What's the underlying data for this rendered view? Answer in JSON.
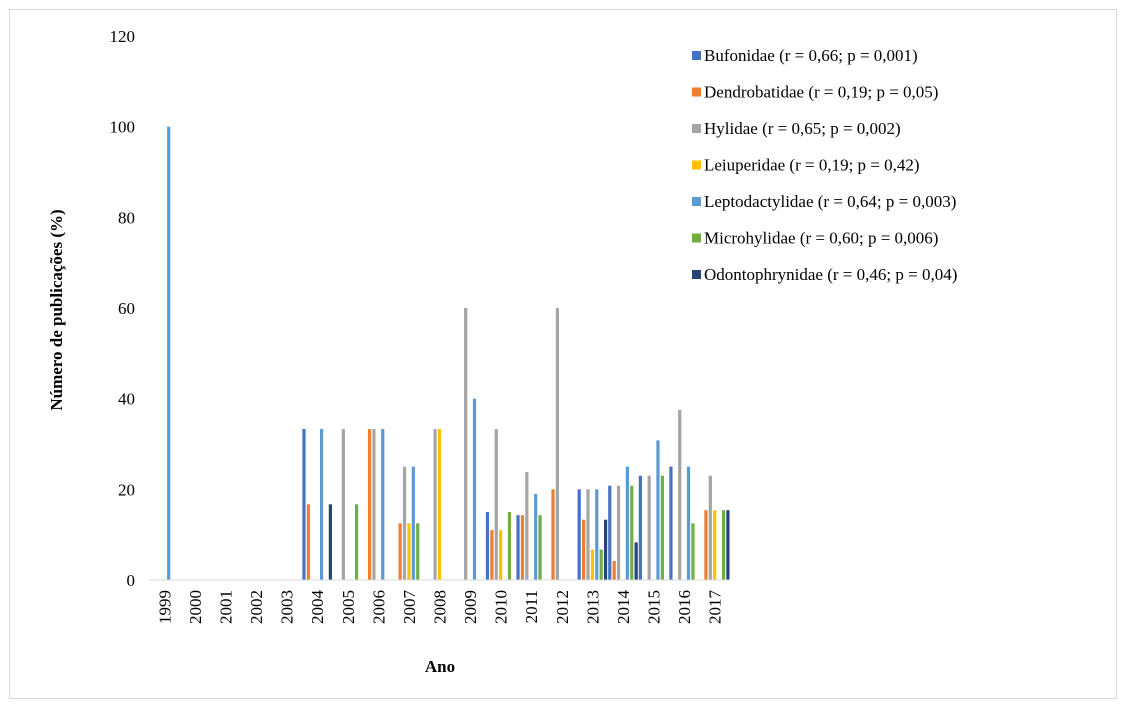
{
  "chart_data": {
    "type": "bar",
    "title": "",
    "xlabel": "Ano",
    "ylabel": "Número de publicações (%)",
    "ylim": [
      0,
      120
    ],
    "yticks": [
      0,
      20,
      40,
      60,
      80,
      100,
      120
    ],
    "grid": false,
    "legend_position": "top-right",
    "categories": [
      "1999",
      "2000",
      "2001",
      "2002",
      "2003",
      "2004",
      "2005",
      "2006",
      "2007",
      "2008",
      "2009",
      "2010",
      "2011",
      "2012",
      "2013",
      "2014",
      "2015",
      "2016",
      "2017"
    ],
    "series": [
      {
        "name": "Bufonidae (r = 0,66; p = 0,001)",
        "color": "#4472C4",
        "values": [
          0,
          0,
          0,
          0,
          0,
          33.3,
          0,
          0,
          0,
          0,
          0,
          15,
          14.3,
          0,
          20,
          20.8,
          23,
          25,
          0
        ]
      },
      {
        "name": "Dendrobatidae (r = 0,19; p = 0,05)",
        "color": "#ED7D31",
        "values": [
          0,
          0,
          0,
          0,
          0,
          16.7,
          0,
          33.3,
          12.5,
          0,
          0,
          11,
          14.3,
          20,
          13.3,
          4.2,
          0,
          0,
          15.4
        ]
      },
      {
        "name": "Hylidae (r = 0,65; p = 0,002)",
        "color": "#A5A5A5",
        "values": [
          0,
          0,
          0,
          0,
          0,
          0,
          33.3,
          33.3,
          25,
          33.3,
          60,
          33.3,
          23.8,
          60,
          20,
          20.8,
          23,
          37.5,
          23
        ]
      },
      {
        "name": "Leiuperidae (r = 0,19; p = 0,42)",
        "color": "#FFC000",
        "values": [
          0,
          0,
          0,
          0,
          0,
          0,
          0,
          0,
          12.5,
          33.3,
          0,
          11,
          0,
          0,
          6.7,
          0,
          0,
          0,
          15.4
        ]
      },
      {
        "name": "Leptodactylidae (r = 0,64; p = 0,003)",
        "color": "#5B9BD5",
        "values": [
          100,
          0,
          0,
          0,
          0,
          33.3,
          0,
          33.3,
          25,
          0,
          40,
          0,
          19,
          0,
          20,
          25,
          30.8,
          25,
          0
        ]
      },
      {
        "name": "Microhylidae (r = 0,60; p = 0,006)",
        "color": "#70AD47",
        "values": [
          0,
          0,
          0,
          0,
          0,
          0,
          16.7,
          0,
          12.5,
          0,
          0,
          15,
          14.3,
          0,
          6.7,
          20.8,
          23,
          12.5,
          15.4
        ]
      },
      {
        "name": "Odontophrynidae (r = 0,46; p = 0,04)",
        "color": "#264478",
        "values": [
          0,
          0,
          0,
          0,
          0,
          16.7,
          0,
          0,
          0,
          0,
          0,
          0,
          0,
          0,
          13.3,
          8.3,
          0,
          0,
          15.4
        ]
      }
    ]
  }
}
